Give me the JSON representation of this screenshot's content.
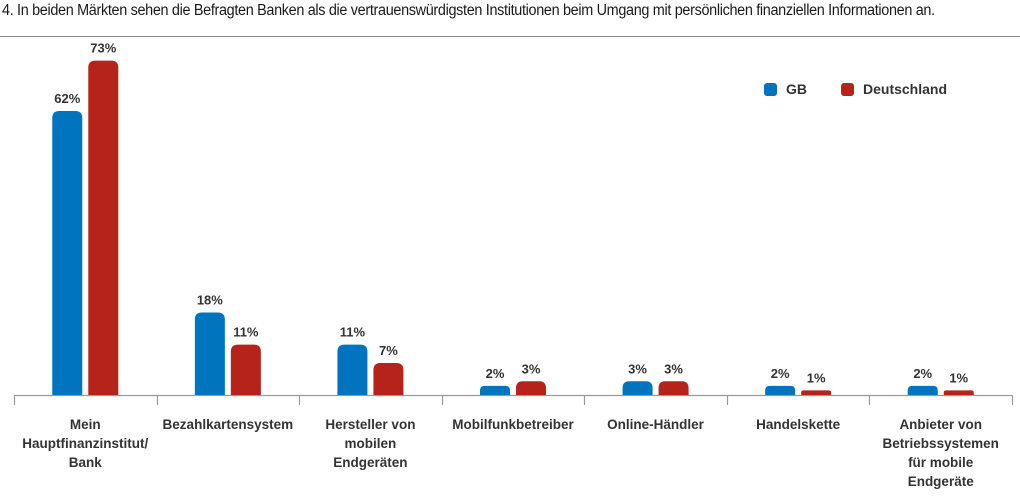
{
  "title": "4. In beiden Märkten sehen die Befragten Banken als die vertrauenswürdigsten Institutionen beim Umgang mit persönlichen finanziellen Informationen an.",
  "colors": {
    "gb": "#0074bf",
    "de": "#b5231a",
    "axis": "#9a9a9a",
    "label": "#333333"
  },
  "chart_data": {
    "type": "bar",
    "title": "",
    "xlabel": "",
    "ylabel": "",
    "ylim": [
      0,
      80
    ],
    "grid": false,
    "legend_position": "top-right",
    "categories": [
      "Mein\nHauptfinanzinstitut/\nBank",
      "Bezahlkartensystem",
      "Hersteller von\nmobilen\nEndgeräten",
      "Mobilfunkbetreiber",
      "Online-Händler",
      "Handelskette",
      "Anbieter von\nBetriebssystemen\nfür mobile\nEndgeräte"
    ],
    "series": [
      {
        "name": "GB",
        "color": "#0074bf",
        "values": [
          62,
          18,
          11,
          2,
          3,
          2,
          2
        ],
        "labels": [
          "62%",
          "18%",
          "11%",
          "2%",
          "3%",
          "2%",
          "2%"
        ]
      },
      {
        "name": "Deutschland",
        "color": "#b5231a",
        "values": [
          73,
          11,
          7,
          3,
          3,
          1,
          1
        ],
        "labels": [
          "73%",
          "11%",
          "7%",
          "3%",
          "3%",
          "1%",
          "1%"
        ]
      }
    ]
  }
}
